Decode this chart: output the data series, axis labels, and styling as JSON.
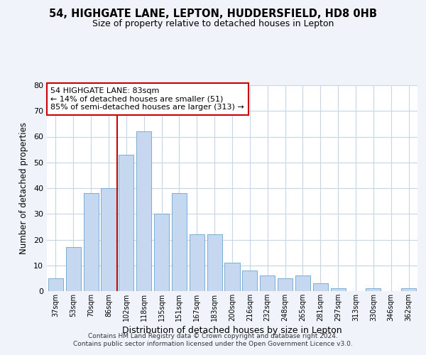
{
  "title1": "54, HIGHGATE LANE, LEPTON, HUDDERSFIELD, HD8 0HB",
  "title2": "Size of property relative to detached houses in Lepton",
  "xlabel": "Distribution of detached houses by size in Lepton",
  "ylabel": "Number of detached properties",
  "bin_labels": [
    "37sqm",
    "53sqm",
    "70sqm",
    "86sqm",
    "102sqm",
    "118sqm",
    "135sqm",
    "151sqm",
    "167sqm",
    "183sqm",
    "200sqm",
    "216sqm",
    "232sqm",
    "248sqm",
    "265sqm",
    "281sqm",
    "297sqm",
    "313sqm",
    "330sqm",
    "346sqm",
    "362sqm"
  ],
  "bar_heights": [
    5,
    17,
    38,
    40,
    53,
    62,
    30,
    38,
    22,
    22,
    11,
    8,
    6,
    5,
    6,
    3,
    1,
    0,
    1,
    0,
    1
  ],
  "bar_color": "#c5d8f0",
  "bar_edge_color": "#7aadd4",
  "vline_x": 3.5,
  "vline_color": "#cc0000",
  "annotation_line1": "54 HIGHGATE LANE: 83sqm",
  "annotation_line2": "← 14% of detached houses are smaller (51)",
  "annotation_line3": "85% of semi-detached houses are larger (313) →",
  "annotation_box_color": "#ffffff",
  "annotation_box_edge": "#cc0000",
  "ylim": [
    0,
    80
  ],
  "yticks": [
    0,
    10,
    20,
    30,
    40,
    50,
    60,
    70,
    80
  ],
  "footer1": "Contains HM Land Registry data © Crown copyright and database right 2024.",
  "footer2": "Contains public sector information licensed under the Open Government Licence v3.0.",
  "bg_color": "#f0f4fa",
  "plot_bg_color": "#ffffff",
  "grid_color": "#c8d4e8",
  "title1_fontsize": 10.5,
  "title2_fontsize": 9
}
